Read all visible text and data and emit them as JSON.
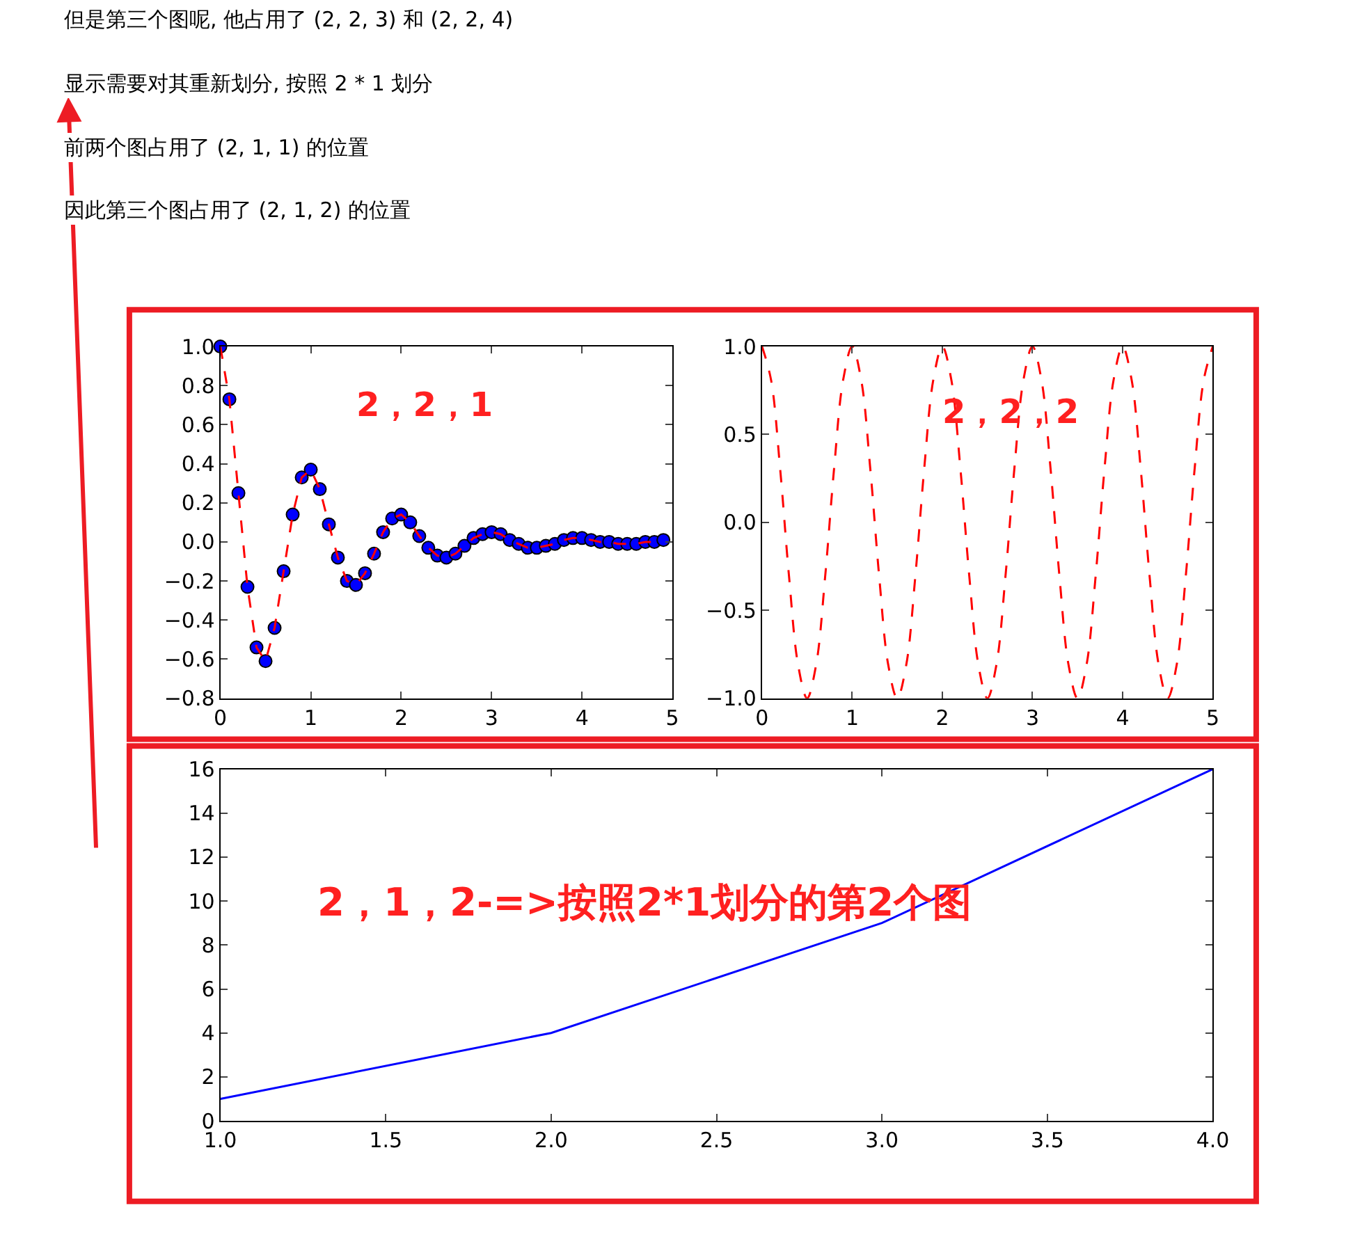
{
  "chart_data": [
    {
      "type": "line",
      "x": [
        0,
        0.1,
        0.2,
        0.3,
        0.4,
        0.5,
        0.6,
        0.7,
        0.8,
        0.9,
        1.0,
        1.1,
        1.2,
        1.3,
        1.4,
        1.5,
        1.6,
        1.7,
        1.8,
        1.9,
        2.0,
        2.1,
        2.2,
        2.3,
        2.4,
        2.5,
        2.6,
        2.7,
        2.8,
        2.9,
        3.0,
        3.1,
        3.2,
        3.3,
        3.4,
        3.5,
        3.6,
        3.7,
        3.8,
        3.9,
        4.0,
        4.1,
        4.2,
        4.3,
        4.4,
        4.5,
        4.6,
        4.7,
        4.8,
        4.9
      ],
      "series": [
        {
          "type": "scatter",
          "color": "#0000ff",
          "marker": "circle",
          "values": [
            1.0,
            0.73,
            0.25,
            -0.23,
            -0.54,
            -0.61,
            -0.44,
            -0.15,
            0.14,
            0.33,
            0.37,
            0.27,
            0.09,
            -0.08,
            -0.2,
            -0.22,
            -0.16,
            -0.06,
            0.05,
            0.12,
            0.14,
            0.1,
            0.03,
            -0.03,
            -0.07,
            -0.08,
            -0.06,
            -0.02,
            0.02,
            0.04,
            0.05,
            0.04,
            0.01,
            -0.01,
            -0.03,
            -0.03,
            -0.02,
            -0.01,
            0.01,
            0.02,
            0.02,
            0.01,
            0.0,
            0.0,
            -0.01,
            -0.01,
            -0.01,
            0.0,
            0.0,
            0.01
          ]
        },
        {
          "color": "#ff0000",
          "line_style": "dashed",
          "values": [
            1.0,
            0.73,
            0.25,
            -0.23,
            -0.54,
            -0.61,
            -0.44,
            -0.15,
            0.14,
            0.33,
            0.37,
            0.27,
            0.09,
            -0.08,
            -0.2,
            -0.22,
            -0.16,
            -0.06,
            0.05,
            0.12,
            0.14,
            0.1,
            0.03,
            -0.03,
            -0.07,
            -0.08,
            -0.06,
            -0.02,
            0.02,
            0.04,
            0.05,
            0.04,
            0.01,
            -0.01,
            -0.03,
            -0.03,
            -0.02,
            -0.01,
            0.01,
            0.02,
            0.02,
            0.01,
            0.0,
            0.0,
            -0.01,
            -0.01,
            -0.01,
            0.0,
            0.0,
            null
          ]
        }
      ],
      "xlim": [
        0,
        5
      ],
      "xticks": [
        0,
        1,
        2,
        3,
        4,
        5
      ],
      "ylim": [
        -0.8,
        1.0
      ],
      "yticks": [
        {
          "value": -0.8,
          "label": "−0.8"
        },
        {
          "value": -0.6,
          "label": "−0.6"
        },
        {
          "value": -0.4,
          "label": "−0.4"
        },
        {
          "value": -0.2,
          "label": "−0.2"
        },
        {
          "value": 0,
          "label": "0.0"
        },
        {
          "value": 0.2,
          "label": "0.2"
        },
        {
          "value": 0.4,
          "label": "0.4"
        },
        {
          "value": 0.6,
          "label": "0.6"
        },
        {
          "value": 0.8,
          "label": "0.8"
        },
        {
          "value": 1.0,
          "label": "1.0"
        }
      ],
      "annotations": [
        "但是第三个图呢, 他占用了 (2, 2, 3) 和 (2, 2, 4)",
        "显示需要对其重新划分, 按照 2 * 1 划分",
        "前两个图占用了 (2, 1, 1) 的位置",
        "因此第三个图占用了 (2, 1, 2) 的位置",
        "2，2，1"
      ]
    },
    {
      "type": "line",
      "x": [
        0,
        0.1,
        0.2,
        0.3,
        0.4,
        0.5,
        0.6,
        0.7,
        0.8,
        0.9,
        1.0,
        1.1,
        1.2,
        1.3,
        1.4,
        1.5,
        1.6,
        1.7,
        1.8,
        1.9,
        2.0,
        2.1,
        2.2,
        2.3,
        2.4,
        2.5,
        2.6,
        2.7,
        2.8,
        2.9,
        3.0,
        3.1,
        3.2,
        3.3,
        3.4,
        3.5,
        3.6,
        3.7,
        3.8,
        3.9,
        4.0,
        4.1,
        4.2,
        4.3,
        4.4,
        4.5,
        4.6,
        4.7,
        4.8,
        4.9,
        5.0
      ],
      "series": [
        {
          "color": "#ff0000",
          "line_style": "dashed",
          "values": [
            1,
            0.81,
            0.31,
            -0.31,
            -0.81,
            -1,
            -0.81,
            -0.31,
            0.31,
            0.81,
            1,
            0.81,
            0.31,
            -0.31,
            -0.81,
            -1,
            -0.81,
            -0.31,
            0.31,
            0.81,
            1,
            0.81,
            0.31,
            -0.31,
            -0.81,
            -1,
            -0.81,
            -0.31,
            0.31,
            0.81,
            1,
            0.81,
            0.31,
            -0.31,
            -0.81,
            -1,
            -0.81,
            -0.31,
            0.31,
            0.81,
            1,
            0.81,
            0.31,
            -0.31,
            -0.81,
            -1,
            -0.81,
            -0.31,
            0.31,
            0.81,
            1
          ]
        }
      ],
      "xlim": [
        0,
        5
      ],
      "xticks": [
        0,
        1,
        2,
        3,
        4,
        5
      ],
      "ylim": [
        -1.0,
        1.0
      ],
      "yticks": [
        {
          "value": -1.0,
          "label": "−1.0"
        },
        {
          "value": -0.5,
          "label": "−0.5"
        },
        {
          "value": 0,
          "label": "0.0"
        },
        {
          "value": 0.5,
          "label": "0.5"
        },
        {
          "value": 1.0,
          "label": "1.0"
        }
      ],
      "annotations": [
        "2，2，2"
      ]
    },
    {
      "type": "line",
      "x": [
        1,
        2,
        3,
        4
      ],
      "series": [
        {
          "color": "#0000ff",
          "line_style": "solid",
          "values": [
            1,
            4,
            9,
            16
          ]
        }
      ],
      "xlim": [
        1,
        4
      ],
      "xticks": [
        {
          "value": 1,
          "label": "1.0"
        },
        {
          "value": 1.5,
          "label": "1.5"
        },
        {
          "value": 2,
          "label": "2.0"
        },
        {
          "value": 2.5,
          "label": "2.5"
        },
        {
          "value": 3,
          "label": "3.0"
        },
        {
          "value": 3.5,
          "label": "3.5"
        },
        {
          "value": 4,
          "label": "4.0"
        }
      ],
      "ylim": [
        0,
        16
      ],
      "yticks": [
        0,
        2,
        4,
        6,
        8,
        10,
        12,
        14,
        16
      ],
      "annotations": [
        "2，1，2-=>按照2*1划分的第2个图"
      ]
    }
  ]
}
